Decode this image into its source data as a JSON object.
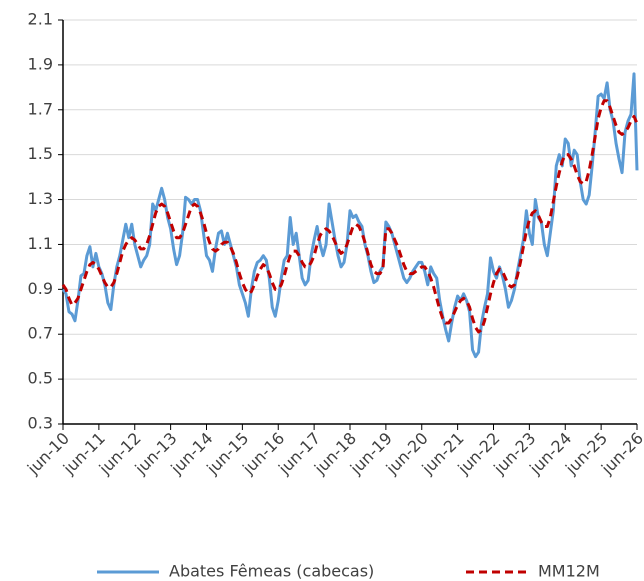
{
  "chart_data": {
    "type": "line",
    "categories": [
      "jun-10",
      null,
      null,
      null,
      null,
      null,
      null,
      null,
      null,
      null,
      null,
      null,
      "jun-11",
      null,
      null,
      null,
      null,
      null,
      null,
      null,
      null,
      null,
      null,
      null,
      "jun-12",
      null,
      null,
      null,
      null,
      null,
      null,
      null,
      null,
      null,
      null,
      null,
      "jun-13",
      null,
      null,
      null,
      null,
      null,
      null,
      null,
      null,
      null,
      null,
      null,
      "jun-14",
      null,
      null,
      null,
      null,
      null,
      null,
      null,
      null,
      null,
      null,
      null,
      "jun-15",
      null,
      null,
      null,
      null,
      null,
      null,
      null,
      null,
      null,
      null,
      null,
      "jun-16",
      null,
      null,
      null,
      null,
      null,
      null,
      null,
      null,
      null,
      null,
      null,
      "jun-17",
      null,
      null,
      null,
      null,
      null,
      null,
      null,
      null,
      null,
      null,
      null,
      "jun-18",
      null,
      null,
      null,
      null,
      null,
      null,
      null,
      null,
      null,
      null,
      null,
      "jun-19",
      null,
      null,
      null,
      null,
      null,
      null,
      null,
      null,
      null,
      null,
      null,
      "jun-20",
      null,
      null,
      null,
      null,
      null,
      null,
      null,
      null,
      null,
      null,
      null,
      "jun-21",
      null,
      null,
      null,
      null,
      null,
      null,
      null,
      null,
      null,
      null,
      null,
      "jun-22",
      null,
      null,
      null,
      null,
      null,
      null,
      null,
      null,
      null,
      null,
      null,
      "jun-23",
      null,
      null,
      null,
      null,
      null,
      null,
      null,
      null,
      null,
      null,
      null,
      "jun-24",
      null,
      null,
      null,
      null,
      null,
      null,
      null,
      null,
      null,
      null,
      null,
      "jun-25",
      null,
      null,
      null,
      null,
      null,
      null,
      null,
      null,
      null,
      null,
      null,
      "jun-26"
    ],
    "series": [
      {
        "name": "Abates Fêmeas (cabecas)",
        "color": "#5b9bd5",
        "dash": false,
        "values": [
          0.9,
          0.88,
          0.8,
          0.79,
          0.76,
          0.85,
          0.96,
          0.97,
          1.05,
          1.09,
          1.0,
          1.06,
          1.0,
          0.97,
          0.92,
          0.84,
          0.81,
          0.92,
          1.0,
          1.05,
          1.12,
          1.19,
          1.13,
          1.19,
          1.1,
          1.05,
          1.0,
          1.03,
          1.05,
          1.1,
          1.28,
          1.25,
          1.3,
          1.35,
          1.3,
          1.22,
          1.17,
          1.08,
          1.01,
          1.05,
          1.15,
          1.31,
          1.3,
          1.28,
          1.3,
          1.3,
          1.25,
          1.15,
          1.05,
          1.03,
          0.98,
          1.08,
          1.15,
          1.16,
          1.1,
          1.15,
          1.1,
          1.05,
          1.0,
          0.92,
          0.88,
          0.84,
          0.78,
          0.9,
          0.98,
          1.02,
          1.03,
          1.05,
          1.03,
          0.95,
          0.82,
          0.78,
          0.85,
          0.95,
          1.03,
          1.05,
          1.22,
          1.1,
          1.15,
          1.05,
          0.95,
          0.92,
          0.94,
          1.05,
          1.12,
          1.18,
          1.1,
          1.05,
          1.1,
          1.28,
          1.2,
          1.12,
          1.05,
          1.0,
          1.02,
          1.1,
          1.25,
          1.22,
          1.23,
          1.2,
          1.18,
          1.1,
          1.05,
          0.98,
          0.93,
          0.94,
          0.98,
          1.0,
          1.2,
          1.18,
          1.15,
          1.1,
          1.05,
          1.0,
          0.95,
          0.93,
          0.95,
          0.98,
          1.0,
          1.02,
          1.02,
          0.98,
          0.92,
          1.0,
          0.97,
          0.95,
          0.85,
          0.78,
          0.72,
          0.67,
          0.75,
          0.82,
          0.87,
          0.85,
          0.88,
          0.85,
          0.8,
          0.63,
          0.6,
          0.62,
          0.75,
          0.82,
          0.88,
          1.04,
          0.98,
          0.95,
          1.0,
          0.96,
          0.9,
          0.82,
          0.85,
          0.9,
          0.98,
          1.05,
          1.12,
          1.25,
          1.15,
          1.1,
          1.3,
          1.22,
          1.2,
          1.1,
          1.05,
          1.15,
          1.25,
          1.45,
          1.5,
          1.45,
          1.57,
          1.55,
          1.45,
          1.52,
          1.5,
          1.38,
          1.3,
          1.28,
          1.32,
          1.45,
          1.6,
          1.76,
          1.77,
          1.75,
          1.82,
          1.7,
          1.65,
          1.55,
          1.48,
          1.42,
          1.6,
          1.65,
          1.68,
          1.86,
          1.43
        ]
      },
      {
        "name": "MM12M",
        "color": "#c00000",
        "dash": true,
        "values": [
          0.92,
          0.9,
          0.86,
          0.83,
          0.84,
          0.86,
          0.9,
          0.94,
          0.98,
          1.01,
          1.02,
          1.01,
          0.99,
          0.96,
          0.93,
          0.91,
          0.91,
          0.93,
          0.97,
          1.02,
          1.07,
          1.1,
          1.12,
          1.13,
          1.12,
          1.1,
          1.08,
          1.08,
          1.1,
          1.14,
          1.19,
          1.24,
          1.27,
          1.28,
          1.27,
          1.24,
          1.2,
          1.16,
          1.13,
          1.13,
          1.15,
          1.19,
          1.23,
          1.27,
          1.28,
          1.27,
          1.24,
          1.2,
          1.15,
          1.11,
          1.08,
          1.07,
          1.08,
          1.1,
          1.11,
          1.11,
          1.09,
          1.06,
          1.02,
          0.97,
          0.93,
          0.9,
          0.88,
          0.89,
          0.92,
          0.96,
          0.99,
          1.01,
          1.0,
          0.97,
          0.93,
          0.9,
          0.9,
          0.92,
          0.96,
          1.01,
          1.05,
          1.07,
          1.07,
          1.05,
          1.02,
          1.0,
          1.0,
          1.02,
          1.05,
          1.1,
          1.14,
          1.16,
          1.17,
          1.16,
          1.14,
          1.11,
          1.08,
          1.06,
          1.07,
          1.1,
          1.14,
          1.18,
          1.19,
          1.18,
          1.15,
          1.11,
          1.06,
          1.01,
          0.98,
          0.97,
          0.97,
          0.99,
          1.17,
          1.17,
          1.15,
          1.12,
          1.09,
          1.05,
          1.01,
          0.98,
          0.97,
          0.97,
          0.98,
          0.99,
          1.0,
          1.0,
          0.98,
          0.95,
          0.91,
          0.86,
          0.81,
          0.77,
          0.75,
          0.75,
          0.77,
          0.8,
          0.83,
          0.85,
          0.86,
          0.85,
          0.82,
          0.77,
          0.73,
          0.71,
          0.72,
          0.76,
          0.82,
          0.88,
          0.93,
          0.97,
          0.99,
          0.98,
          0.95,
          0.92,
          0.91,
          0.92,
          0.96,
          1.02,
          1.09,
          1.16,
          1.21,
          1.24,
          1.25,
          1.23,
          1.2,
          1.18,
          1.18,
          1.22,
          1.29,
          1.36,
          1.42,
          1.47,
          1.5,
          1.5,
          1.48,
          1.45,
          1.41,
          1.38,
          1.37,
          1.38,
          1.43,
          1.5,
          1.58,
          1.66,
          1.71,
          1.74,
          1.74,
          1.71,
          1.67,
          1.63,
          1.6,
          1.59,
          1.6,
          1.62,
          1.65,
          1.67,
          1.64
        ]
      }
    ],
    "ylim": [
      0.3,
      2.1
    ],
    "yticks": [
      0.3,
      0.5,
      0.7,
      0.9,
      1.1,
      1.3,
      1.5,
      1.7,
      1.9,
      2.1
    ],
    "grid": true,
    "legend": "bottom"
  }
}
